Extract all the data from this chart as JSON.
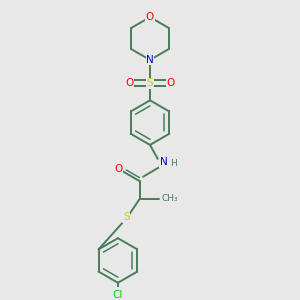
{
  "bg_color": "#e8e8e8",
  "bond_color": "#4a7c59",
  "atom_colors": {
    "O": "#ff0000",
    "N": "#0000cd",
    "S": "#cccc00",
    "Cl": "#00cc00",
    "C": "#4a7c59"
  },
  "fig_width": 3.0,
  "fig_height": 3.0,
  "dpi": 100
}
